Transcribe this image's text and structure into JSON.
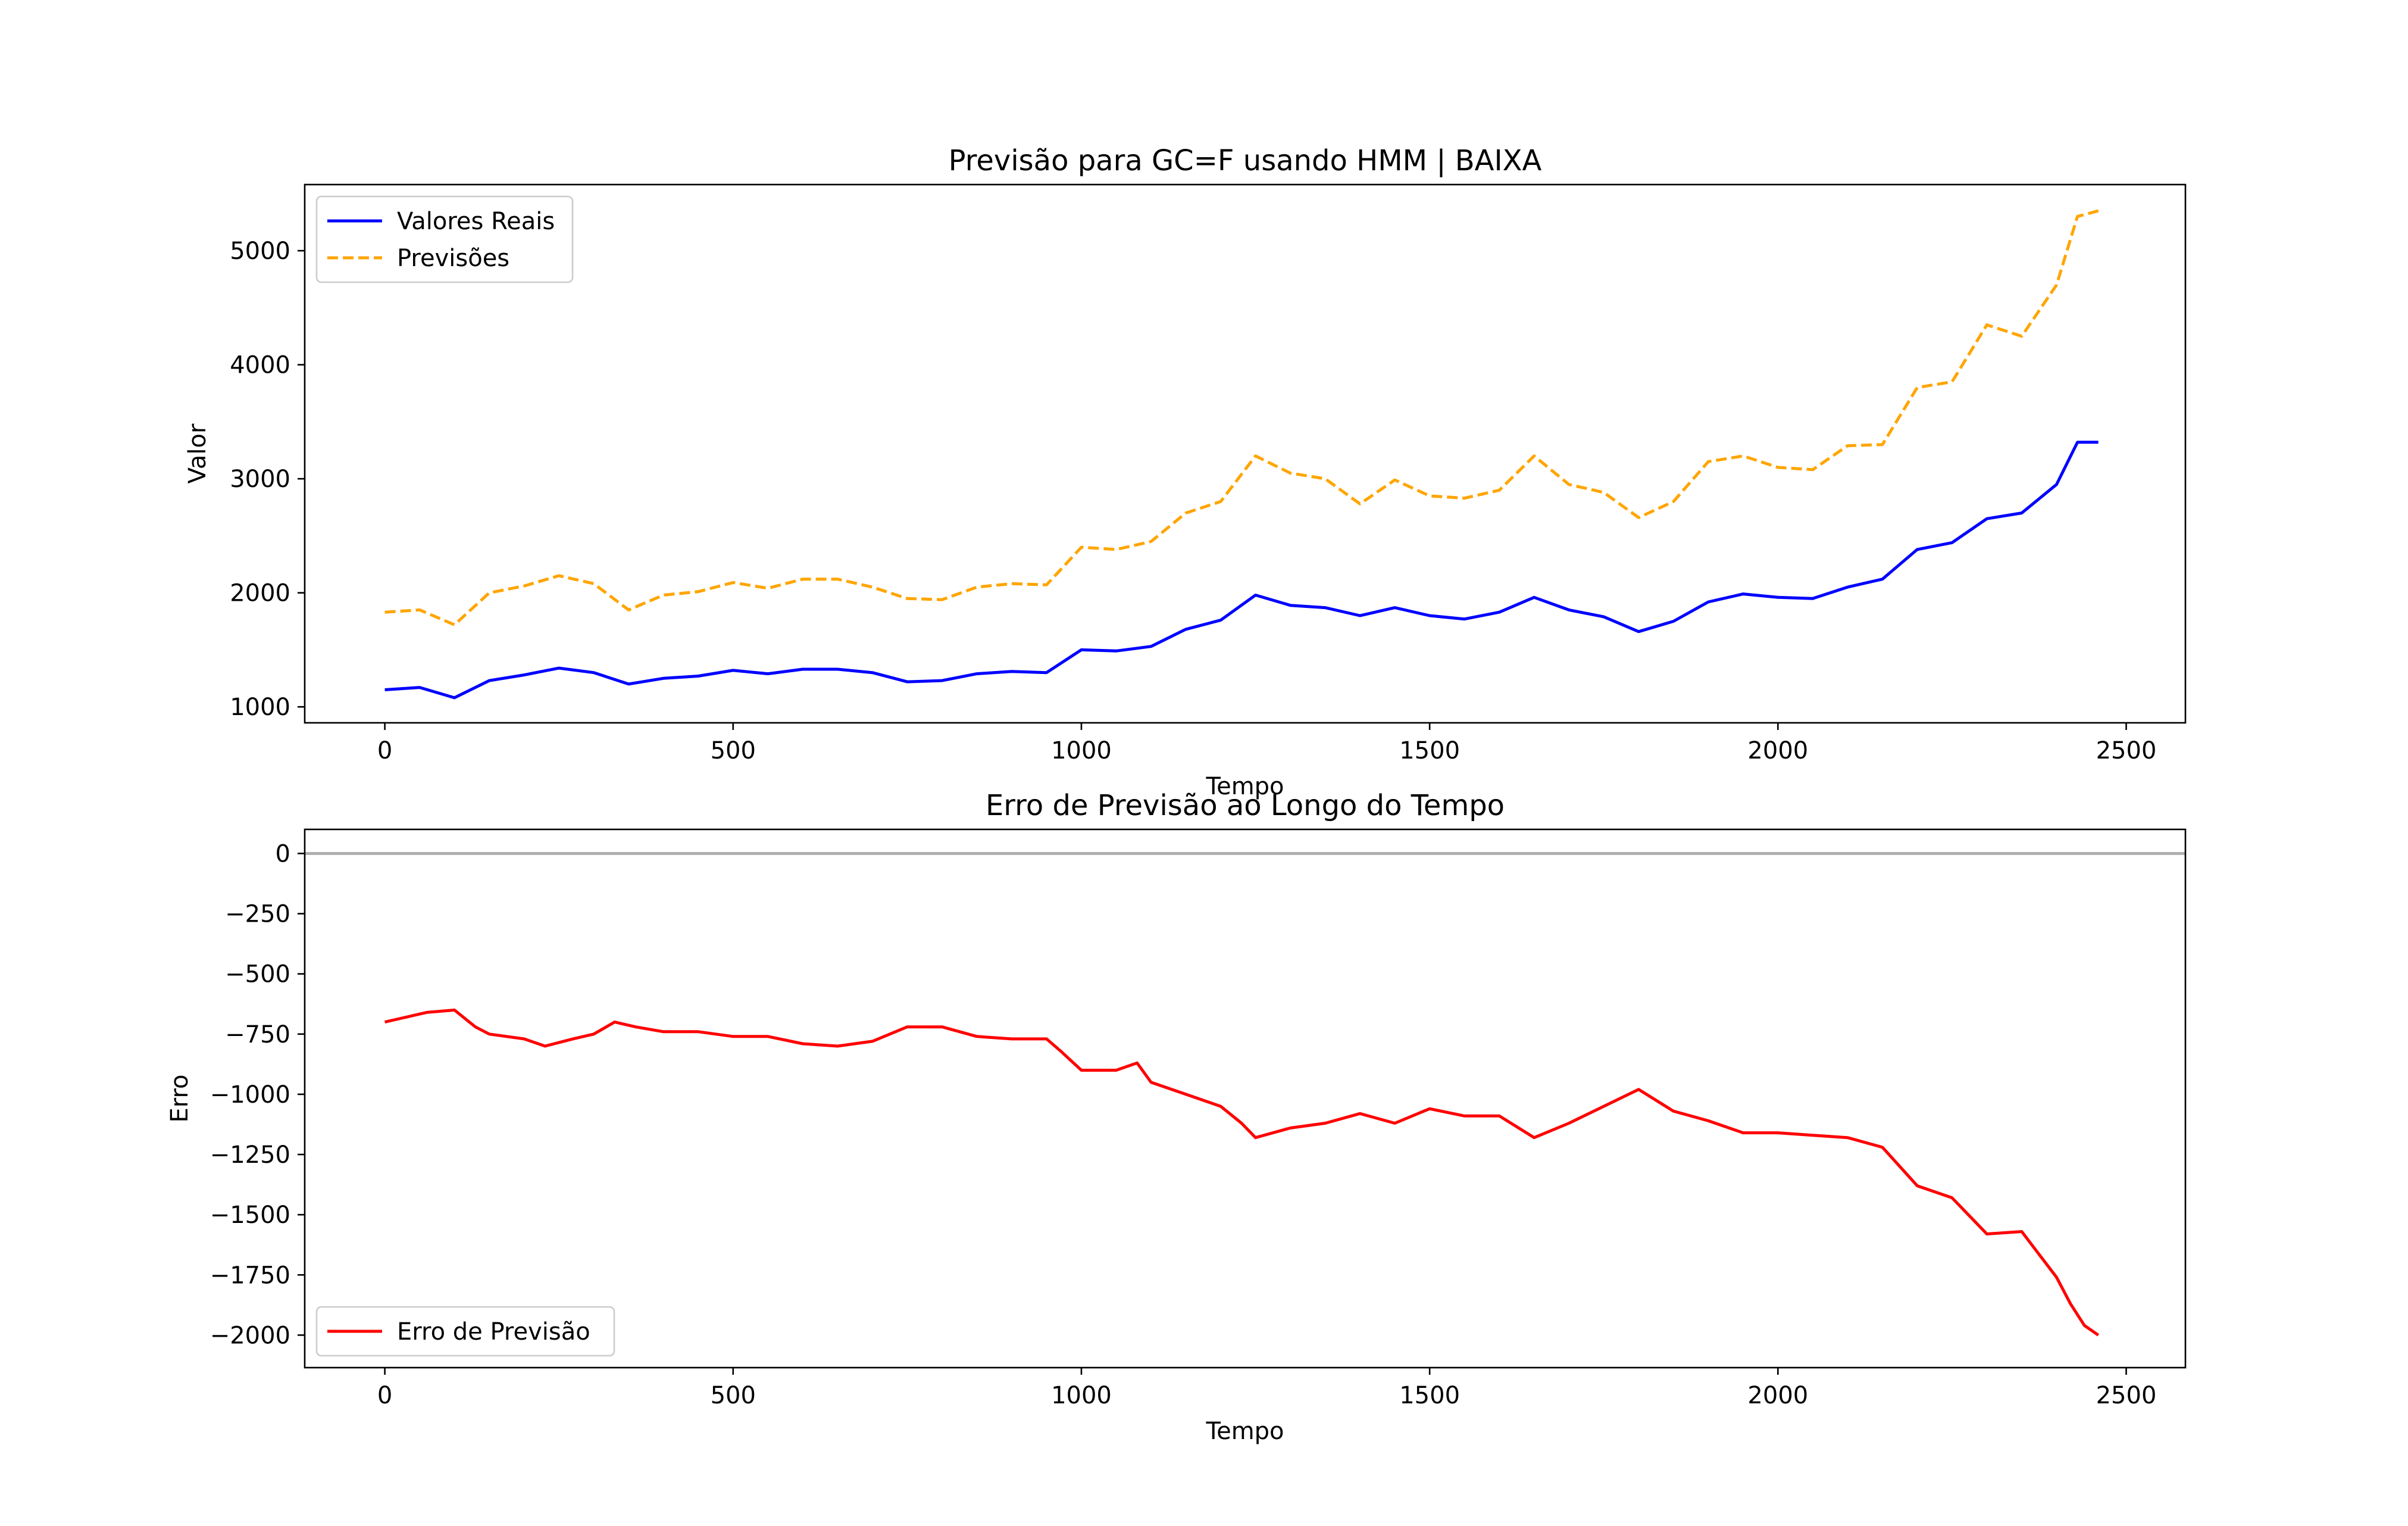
{
  "colors": {
    "real": "#0000ff",
    "forecast": "#ffa500",
    "error": "#ff0000",
    "zero_line": "#b0b0b0"
  },
  "chart_data": [
    {
      "type": "line",
      "title": "Previsão para GC=F usando HMM | BAIXA",
      "xlabel": "Tempo",
      "ylabel": "Valor",
      "xlim": [
        -115,
        2585
      ],
      "ylim": [
        860,
        5580
      ],
      "xticks": [
        0,
        500,
        1000,
        1500,
        2000,
        2500
      ],
      "yticks": [
        1000,
        2000,
        3000,
        4000,
        5000
      ],
      "xtick_labels": [
        "0",
        "500",
        "1000",
        "1500",
        "2000",
        "2500"
      ],
      "ytick_labels": [
        "1000",
        "2000",
        "3000",
        "4000",
        "5000"
      ],
      "grid": false,
      "legend_position": "upper left",
      "series": [
        {
          "name": "Valores Reais",
          "style": "solid",
          "color": "#0000ff",
          "x": [
            0,
            50,
            100,
            150,
            200,
            250,
            300,
            350,
            400,
            450,
            500,
            550,
            600,
            650,
            700,
            750,
            800,
            850,
            900,
            950,
            1000,
            1050,
            1100,
            1150,
            1200,
            1250,
            1300,
            1350,
            1400,
            1450,
            1500,
            1550,
            1600,
            1650,
            1700,
            1750,
            1800,
            1850,
            1900,
            1950,
            2000,
            2050,
            2100,
            2150,
            2200,
            2250,
            2300,
            2350,
            2400,
            2430,
            2460
          ],
          "y": [
            1150,
            1170,
            1080,
            1230,
            1280,
            1340,
            1300,
            1200,
            1250,
            1270,
            1320,
            1290,
            1330,
            1330,
            1300,
            1220,
            1230,
            1290,
            1310,
            1300,
            1500,
            1490,
            1530,
            1680,
            1760,
            1980,
            1890,
            1870,
            1800,
            1870,
            1800,
            1770,
            1830,
            1960,
            1850,
            1790,
            1660,
            1750,
            1920,
            1990,
            1960,
            1950,
            2050,
            2120,
            2380,
            2440,
            2650,
            2700,
            2950,
            3320,
            3320
          ]
        },
        {
          "name": "Previsões",
          "style": "dashed",
          "color": "#ffa500",
          "x": [
            0,
            50,
            100,
            150,
            200,
            250,
            300,
            350,
            400,
            450,
            500,
            550,
            600,
            650,
            700,
            750,
            800,
            850,
            900,
            950,
            1000,
            1050,
            1100,
            1150,
            1200,
            1250,
            1300,
            1350,
            1400,
            1450,
            1500,
            1550,
            1600,
            1650,
            1700,
            1750,
            1800,
            1850,
            1900,
            1950,
            2000,
            2050,
            2100,
            2150,
            2200,
            2250,
            2300,
            2350,
            2400,
            2430,
            2460
          ],
          "y": [
            1830,
            1850,
            1720,
            2000,
            2060,
            2150,
            2080,
            1850,
            1980,
            2010,
            2090,
            2040,
            2120,
            2120,
            2050,
            1950,
            1940,
            2050,
            2080,
            2070,
            2400,
            2380,
            2450,
            2700,
            2800,
            3200,
            3050,
            3000,
            2780,
            2990,
            2850,
            2830,
            2900,
            3200,
            2950,
            2880,
            2660,
            2800,
            3150,
            3200,
            3100,
            3080,
            3290,
            3300,
            3800,
            3850,
            4350,
            4250,
            4700,
            5300,
            5350
          ]
        }
      ]
    },
    {
      "type": "line",
      "title": "Erro de Previsão ao Longo do Tempo",
      "xlabel": "Tempo",
      "ylabel": "Erro",
      "xlim": [
        -115,
        2585
      ],
      "ylim": [
        -2135,
        100
      ],
      "xticks": [
        0,
        500,
        1000,
        1500,
        2000,
        2500
      ],
      "yticks": [
        0,
        -250,
        -500,
        -750,
        -1000,
        -1250,
        -1500,
        -1750,
        -2000
      ],
      "xtick_labels": [
        "0",
        "500",
        "1000",
        "1500",
        "2000",
        "2500"
      ],
      "ytick_labels": [
        "0",
        "−250",
        "−500",
        "−750",
        "−1000",
        "−1250",
        "−1500",
        "−1750",
        "−2000"
      ],
      "grid": false,
      "legend_position": "lower left",
      "reference_line_y": 0,
      "series": [
        {
          "name": "Erro de Previsão",
          "style": "solid",
          "color": "#ff0000",
          "x": [
            0,
            30,
            60,
            100,
            130,
            150,
            200,
            230,
            270,
            300,
            330,
            360,
            400,
            450,
            500,
            550,
            600,
            650,
            700,
            750,
            800,
            850,
            900,
            950,
            970,
            1000,
            1050,
            1080,
            1100,
            1150,
            1200,
            1230,
            1250,
            1300,
            1350,
            1400,
            1450,
            1500,
            1550,
            1600,
            1650,
            1700,
            1750,
            1800,
            1850,
            1900,
            1950,
            2000,
            2050,
            2100,
            2150,
            2200,
            2250,
            2300,
            2350,
            2400,
            2420,
            2440,
            2460
          ],
          "y": [
            -700,
            -680,
            -660,
            -650,
            -720,
            -750,
            -770,
            -800,
            -770,
            -750,
            -700,
            -720,
            -740,
            -740,
            -760,
            -760,
            -790,
            -800,
            -780,
            -720,
            -720,
            -760,
            -770,
            -770,
            -820,
            -900,
            -900,
            -870,
            -950,
            -1000,
            -1050,
            -1120,
            -1180,
            -1140,
            -1120,
            -1080,
            -1120,
            -1060,
            -1090,
            -1090,
            -1180,
            -1120,
            -1050,
            -980,
            -1070,
            -1110,
            -1160,
            -1160,
            -1170,
            -1180,
            -1220,
            -1380,
            -1430,
            -1580,
            -1570,
            -1760,
            -1870,
            -1960,
            -2000
          ]
        }
      ]
    }
  ]
}
